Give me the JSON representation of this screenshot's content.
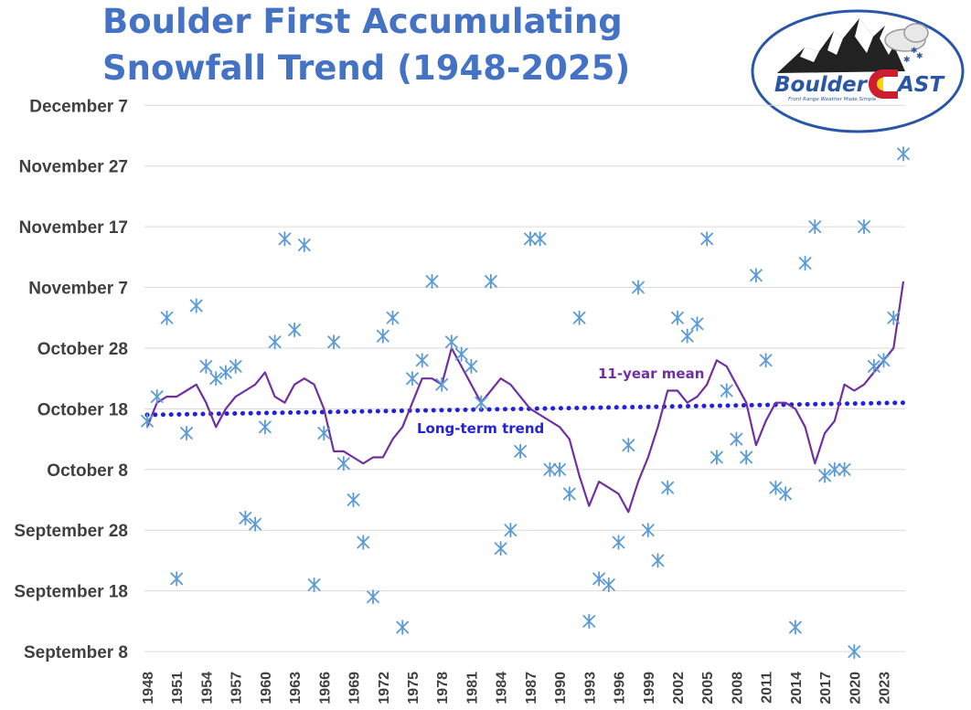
{
  "title_lines": [
    "Boulder First Accumulating",
    "Snowfall Trend (1948-2025)"
  ],
  "logo": {
    "word_a": "Boulder",
    "word_b": "AST",
    "tagline": "Front Range Weather Made Simple"
  },
  "chart_data": {
    "type": "scatter",
    "title": "Boulder First Accumulating Snowfall Trend (1948-2025)",
    "x_unit": "year",
    "y_unit": "date",
    "ylim": [
      "September 5",
      "December 9"
    ],
    "xlim": [
      1948,
      2025
    ],
    "y_ticks": [
      "September 8",
      "September 18",
      "September 28",
      "October 8",
      "October 18",
      "October 28",
      "November 7",
      "November 17",
      "November 27",
      "December 7"
    ],
    "x_ticks": [
      "1948",
      "1951",
      "1954",
      "1957",
      "1960",
      "1963",
      "1966",
      "1969",
      "1972",
      "1975",
      "1978",
      "1981",
      "1984",
      "1987",
      "1990",
      "1993",
      "1996",
      "1999",
      "2002",
      "2005",
      "2008",
      "2011",
      "2014",
      "2017",
      "2020",
      "2023"
    ],
    "grid": true,
    "series": [
      {
        "marker": "asterisk",
        "color": "#5b9bd5",
        "points": [
          [
            1948,
            "October 16"
          ],
          [
            1949,
            "October 20"
          ],
          [
            1950,
            "November 2"
          ],
          [
            1951,
            "September 20"
          ],
          [
            1952,
            "October 14"
          ],
          [
            1953,
            "November 4"
          ],
          [
            1954,
            "October 25"
          ],
          [
            1955,
            "October 23"
          ],
          [
            1956,
            "October 24"
          ],
          [
            1957,
            "October 25"
          ],
          [
            1958,
            "September 30"
          ],
          [
            1959,
            "September 29"
          ],
          [
            1960,
            "October 15"
          ],
          [
            1961,
            "October 29"
          ],
          [
            1962,
            "November 15"
          ],
          [
            1963,
            "October 31"
          ],
          [
            1964,
            "November 14"
          ],
          [
            1965,
            "September 19"
          ],
          [
            1966,
            "October 14"
          ],
          [
            1967,
            "October 29"
          ],
          [
            1968,
            "October 9"
          ],
          [
            1969,
            "October 3"
          ],
          [
            1970,
            "September 26"
          ],
          [
            1971,
            "September 17"
          ],
          [
            1972,
            "October 30"
          ],
          [
            1973,
            "November 2"
          ],
          [
            1974,
            "September 12"
          ],
          [
            1975,
            "October 23"
          ],
          [
            1976,
            "October 26"
          ],
          [
            1977,
            "November 8"
          ],
          [
            1978,
            "October 22"
          ],
          [
            1979,
            "October 29"
          ],
          [
            1980,
            "October 27"
          ],
          [
            1981,
            "October 25"
          ],
          [
            1982,
            "October 19"
          ],
          [
            1983,
            "November 8"
          ],
          [
            1984,
            "September 25"
          ],
          [
            1985,
            "September 28"
          ],
          [
            1986,
            "October 11"
          ],
          [
            1987,
            "November 15"
          ],
          [
            1988,
            "November 15"
          ],
          [
            1989,
            "October 8"
          ],
          [
            1990,
            "October 8"
          ],
          [
            1991,
            "October 4"
          ],
          [
            1992,
            "November 2"
          ],
          [
            1993,
            "September 13"
          ],
          [
            1994,
            "September 20"
          ],
          [
            1995,
            "September 19"
          ],
          [
            1996,
            "September 26"
          ],
          [
            1997,
            "October 12"
          ],
          [
            1998,
            "November 7"
          ],
          [
            1999,
            "September 28"
          ],
          [
            2000,
            "September 23"
          ],
          [
            2001,
            "October 5"
          ],
          [
            2002,
            "November 2"
          ],
          [
            2003,
            "October 30"
          ],
          [
            2004,
            "November 1"
          ],
          [
            2005,
            "November 15"
          ],
          [
            2006,
            "October 10"
          ],
          [
            2007,
            "October 21"
          ],
          [
            2008,
            "October 13"
          ],
          [
            2009,
            "October 10"
          ],
          [
            2010,
            "November 9"
          ],
          [
            2011,
            "October 26"
          ],
          [
            2012,
            "October 5"
          ],
          [
            2013,
            "October 4"
          ],
          [
            2014,
            "September 12"
          ],
          [
            2015,
            "November 11"
          ],
          [
            2016,
            "November 17"
          ],
          [
            2017,
            "October 7"
          ],
          [
            2018,
            "October 8"
          ],
          [
            2019,
            "October 8"
          ],
          [
            2020,
            "September 8"
          ],
          [
            2021,
            "November 17"
          ],
          [
            2022,
            "October 25"
          ],
          [
            2023,
            "October 26"
          ],
          [
            2024,
            "November 2"
          ],
          [
            2025,
            "November 29"
          ]
        ]
      },
      {
        "name": "11-year mean",
        "type": "line",
        "color": "#7030a0",
        "points": [
          [
            1948,
            "October 15"
          ],
          [
            1949,
            "October 19"
          ],
          [
            1950,
            "October 20"
          ],
          [
            1951,
            "October 20"
          ],
          [
            1952,
            "October 21"
          ],
          [
            1953,
            "October 22"
          ],
          [
            1954,
            "October 19"
          ],
          [
            1955,
            "October 15"
          ],
          [
            1956,
            "October 18"
          ],
          [
            1957,
            "October 20"
          ],
          [
            1958,
            "October 21"
          ],
          [
            1959,
            "October 22"
          ],
          [
            1960,
            "October 24"
          ],
          [
            1961,
            "October 20"
          ],
          [
            1962,
            "October 19"
          ],
          [
            1963,
            "October 22"
          ],
          [
            1964,
            "October 23"
          ],
          [
            1965,
            "October 22"
          ],
          [
            1966,
            "October 18"
          ],
          [
            1967,
            "October 11"
          ],
          [
            1968,
            "October 11"
          ],
          [
            1969,
            "October 10"
          ],
          [
            1970,
            "October 9"
          ],
          [
            1971,
            "October 10"
          ],
          [
            1972,
            "October 10"
          ],
          [
            1973,
            "October 13"
          ],
          [
            1974,
            "October 15"
          ],
          [
            1975,
            "October 19"
          ],
          [
            1976,
            "October 23"
          ],
          [
            1977,
            "October 23"
          ],
          [
            1978,
            "October 22"
          ],
          [
            1979,
            "October 28"
          ],
          [
            1980,
            "October 25"
          ],
          [
            1981,
            "October 22"
          ],
          [
            1982,
            "October 19"
          ],
          [
            1983,
            "October 21"
          ],
          [
            1984,
            "October 23"
          ],
          [
            1985,
            "October 22"
          ],
          [
            1986,
            "October 20"
          ],
          [
            1987,
            "October 18"
          ],
          [
            1988,
            "October 17"
          ],
          [
            1989,
            "October 16"
          ],
          [
            1990,
            "October 15"
          ],
          [
            1991,
            "October 13"
          ],
          [
            1992,
            "October 7"
          ],
          [
            1993,
            "October 2"
          ],
          [
            1994,
            "October 6"
          ],
          [
            1995,
            "October 5"
          ],
          [
            1996,
            "October 4"
          ],
          [
            1997,
            "October 1"
          ],
          [
            1998,
            "October 6"
          ],
          [
            1999,
            "October 10"
          ],
          [
            2000,
            "October 15"
          ],
          [
            2001,
            "October 21"
          ],
          [
            2002,
            "October 21"
          ],
          [
            2003,
            "October 19"
          ],
          [
            2004,
            "October 20"
          ],
          [
            2005,
            "October 22"
          ],
          [
            2006,
            "October 26"
          ],
          [
            2007,
            "October 25"
          ],
          [
            2008,
            "October 22"
          ],
          [
            2009,
            "October 19"
          ],
          [
            2010,
            "October 12"
          ],
          [
            2011,
            "October 16"
          ],
          [
            2012,
            "October 19"
          ],
          [
            2013,
            "October 19"
          ],
          [
            2014,
            "October 18"
          ],
          [
            2015,
            "October 15"
          ],
          [
            2016,
            "October 9"
          ],
          [
            2017,
            "October 14"
          ],
          [
            2018,
            "October 16"
          ],
          [
            2019,
            "October 22"
          ],
          [
            2020,
            "October 21"
          ],
          [
            2021,
            "October 22"
          ],
          [
            2022,
            "October 24"
          ],
          [
            2023,
            "October 26"
          ],
          [
            2024,
            "October 28"
          ],
          [
            2025,
            "November 8"
          ]
        ]
      },
      {
        "name": "Long-term trend",
        "type": "line",
        "style": "dotted",
        "color": "#2222dd",
        "points": [
          [
            1948,
            "October 17"
          ],
          [
            2025,
            "October 19"
          ]
        ]
      }
    ],
    "annotations": {
      "mean_label": "11-year mean",
      "trend_label": "Long-term trend"
    }
  }
}
